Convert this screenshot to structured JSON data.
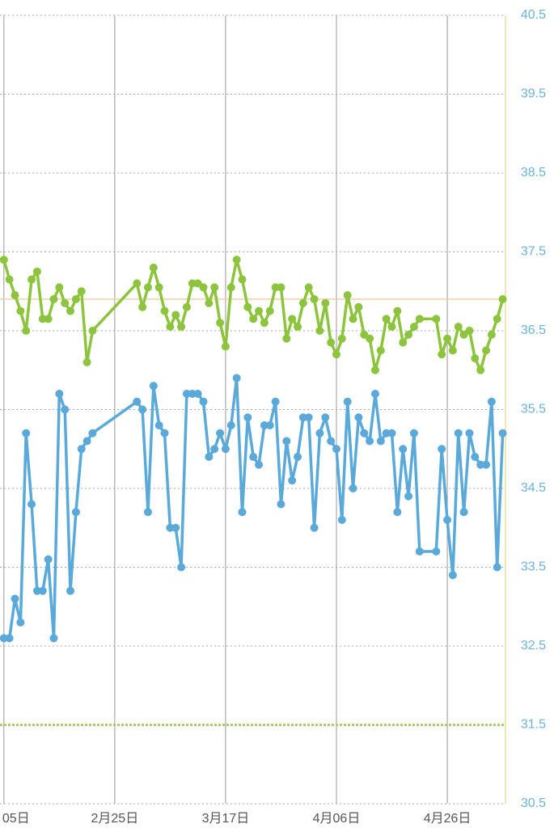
{
  "chart_data": {
    "type": "line",
    "x": [
      0,
      1,
      2,
      3,
      4,
      5,
      6,
      7,
      8,
      9,
      10,
      11,
      12,
      13,
      14,
      15,
      16,
      24,
      25,
      26,
      27,
      28,
      29,
      30,
      31,
      32,
      33,
      34,
      35,
      36,
      37,
      38,
      39,
      40,
      41,
      42,
      43,
      44,
      45,
      46,
      47,
      48,
      49,
      50,
      51,
      52,
      53,
      54,
      55,
      56,
      57,
      58,
      59,
      60,
      61,
      62,
      63,
      64,
      65,
      66,
      67,
      68,
      69,
      70,
      71,
      72,
      73,
      74,
      75,
      78,
      79,
      80,
      81,
      82,
      83,
      84,
      85,
      86,
      87,
      88,
      89,
      90
    ],
    "series": [
      {
        "color": "#8cc43e",
        "values": [
          37.4,
          37.15,
          36.95,
          36.75,
          36.5,
          37.15,
          37.25,
          36.65,
          36.65,
          36.9,
          37.05,
          36.85,
          36.75,
          36.9,
          37.0,
          36.1,
          36.5,
          37.1,
          36.8,
          37.05,
          37.3,
          37.05,
          36.75,
          36.55,
          36.7,
          36.55,
          36.8,
          37.1,
          37.1,
          37.05,
          36.85,
          37.05,
          36.6,
          36.3,
          37.05,
          37.4,
          37.15,
          36.8,
          36.65,
          36.75,
          36.6,
          36.75,
          37.05,
          37.05,
          36.4,
          36.65,
          36.55,
          36.85,
          37.05,
          36.9,
          36.5,
          36.85,
          36.35,
          36.2,
          36.4,
          36.95,
          36.65,
          36.8,
          36.45,
          36.4,
          36.0,
          36.25,
          36.65,
          36.55,
          36.75,
          36.35,
          36.45,
          36.55,
          36.65,
          36.65,
          36.2,
          36.4,
          36.25,
          36.55,
          36.45,
          36.5,
          36.15,
          36.0,
          36.25,
          36.45,
          36.65,
          36.9
        ]
      },
      {
        "color": "#5aa9d9",
        "values": [
          32.6,
          32.6,
          33.1,
          32.8,
          35.2,
          34.3,
          33.2,
          33.2,
          33.6,
          32.6,
          35.7,
          35.5,
          33.2,
          34.2,
          35.0,
          35.1,
          35.2,
          35.6,
          35.5,
          34.2,
          35.8,
          35.3,
          35.2,
          34.0,
          34.0,
          33.5,
          35.7,
          35.7,
          35.7,
          35.6,
          34.9,
          35.0,
          35.2,
          35.0,
          35.3,
          35.9,
          34.2,
          35.4,
          34.9,
          34.8,
          35.3,
          35.3,
          35.6,
          34.3,
          35.1,
          34.6,
          34.9,
          35.4,
          35.4,
          34.0,
          35.2,
          35.4,
          35.1,
          35.0,
          34.1,
          35.6,
          34.5,
          35.4,
          35.2,
          35.1,
          35.7,
          35.1,
          35.2,
          35.2,
          34.2,
          35.0,
          34.4,
          35.2,
          33.7,
          33.7,
          35.0,
          34.1,
          33.4,
          35.2,
          34.2,
          35.2,
          34.9,
          34.8,
          34.8,
          35.6,
          33.5,
          35.2
        ]
      }
    ],
    "xlim": [
      -0.7,
      90.5
    ],
    "xticks": [
      {
        "value": 0,
        "label": "05日"
      },
      {
        "value": 20,
        "label": "2月25日"
      },
      {
        "value": 40,
        "label": "3月17日"
      },
      {
        "value": 60,
        "label": "4月06日"
      },
      {
        "value": 80,
        "label": "4月26日"
      }
    ],
    "ylim": [
      30.5,
      40.5
    ],
    "yticks": [
      30.5,
      31.5,
      32.5,
      33.5,
      34.5,
      35.5,
      36.5,
      37.5,
      38.5,
      39.5,
      40.5
    ],
    "reference_lines": [
      {
        "value": 36.9,
        "color": "#f6cfa6"
      },
      {
        "value": 31.5,
        "color": "#a8cf6a",
        "dashed": true
      }
    ],
    "grid": true
  }
}
